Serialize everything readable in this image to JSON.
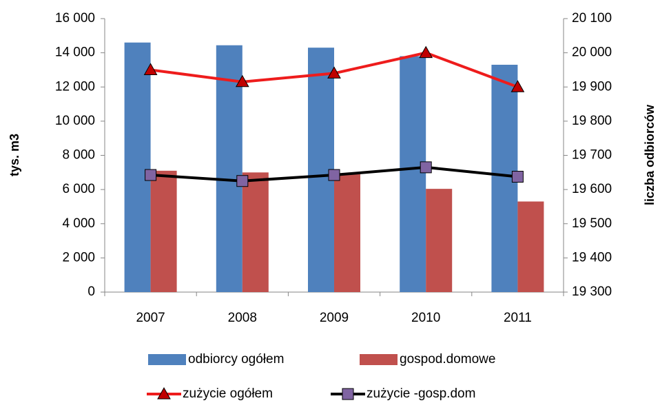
{
  "chart_data": {
    "type": "bar-line",
    "y_label": "tys. m3",
    "y2_label": "liczba odbiorców",
    "categories": [
      "2007",
      "2008",
      "2009",
      "2010",
      "2011"
    ],
    "ylim": [
      0,
      16000
    ],
    "yticks": [
      0,
      {
        "value": 2000,
        "label": "2 000"
      },
      {
        "value": 4000,
        "label": "4 000"
      },
      {
        "value": 6000,
        "label": "6 000"
      },
      {
        "value": 8000,
        "label": "8 000"
      },
      {
        "value": 10000,
        "label": "10 000"
      },
      {
        "value": 12000,
        "label": "12 000"
      },
      {
        "value": 14000,
        "label": "14 000"
      },
      {
        "value": 16000,
        "label": "16 000"
      }
    ],
    "y2lim": [
      19300,
      20100
    ],
    "y2ticks": [
      {
        "value": 19300,
        "label": "19 300"
      },
      {
        "value": 19400,
        "label": "19 400"
      },
      {
        "value": 19500,
        "label": "19 500"
      },
      {
        "value": 19600,
        "label": "19 600"
      },
      {
        "value": 19700,
        "label": "19 700"
      },
      {
        "value": 19800,
        "label": "19 800"
      },
      {
        "value": 19900,
        "label": "19 900"
      },
      {
        "value": 20000,
        "label": "20 000"
      },
      {
        "value": 20100,
        "label": "20 100"
      }
    ],
    "grid": false,
    "series": [
      {
        "name": "odbiorcy ogółem",
        "type": "bar",
        "axis": "y2",
        "color": "#4f81bd",
        "values": [
          20030,
          20022,
          20015,
          19990,
          19965
        ]
      },
      {
        "name": "gospod.domowe",
        "type": "bar",
        "axis": "y2",
        "color": "#c0504d",
        "values": [
          19655,
          19650,
          19645,
          19602,
          19565
        ]
      },
      {
        "name": "zużycie ogółem",
        "type": "line",
        "marker": "triangle",
        "color": "#ee1c1c",
        "marker_color": "#c00000",
        "values": [
          13000,
          12300,
          12800,
          14000,
          12000
        ]
      },
      {
        "name": "zużycie -gosp.dom",
        "type": "line",
        "marker": "square",
        "color": "#000000",
        "marker_color": "#8064a2",
        "values": [
          6850,
          6500,
          6850,
          7300,
          6750
        ]
      }
    ]
  }
}
